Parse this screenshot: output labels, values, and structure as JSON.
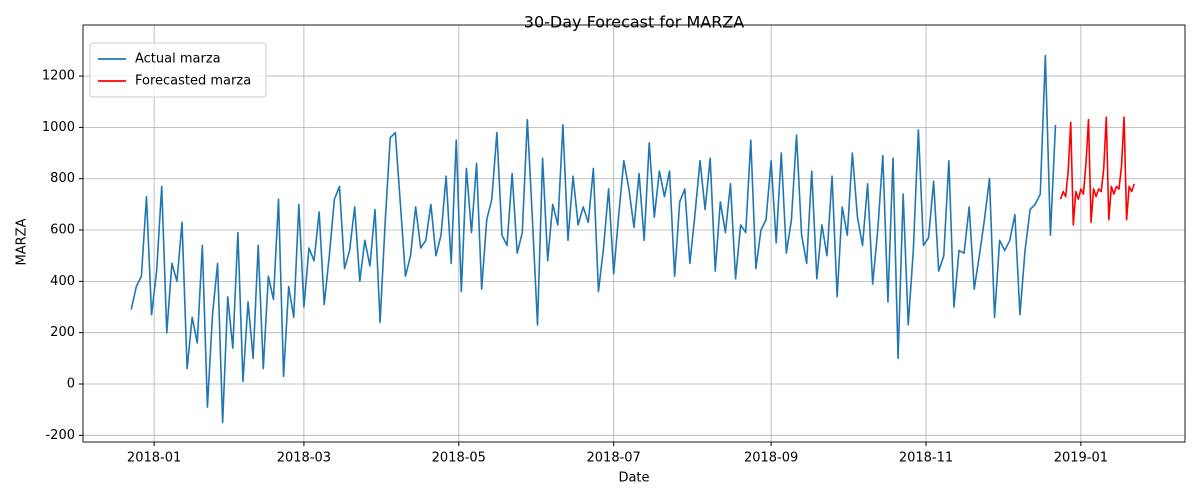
{
  "chart_data": {
    "type": "line",
    "title": "30-Day Forecast for MARZA",
    "x_label": "Date",
    "y_label": "MARZA",
    "grid": true,
    "legend": "upper left",
    "xlim": [
      "2017-12-04",
      "2019-02-11"
    ],
    "ylim": [
      -226,
      1399
    ],
    "xticks": [
      "2018-01",
      "2018-03",
      "2018-05",
      "2018-07",
      "2018-09",
      "2018-11",
      "2019-01"
    ],
    "yticks": [
      -200,
      0,
      200,
      400,
      600,
      800,
      1000,
      1200
    ],
    "series": [
      {
        "name": "Actual marza",
        "color": "#1f77b4",
        "x": [
          "2017-12-23",
          "2017-12-25",
          "2017-12-27",
          "2017-12-29",
          "2017-12-31",
          "2018-01-02",
          "2018-01-04",
          "2018-01-06",
          "2018-01-08",
          "2018-01-10",
          "2018-01-12",
          "2018-01-14",
          "2018-01-16",
          "2018-01-18",
          "2018-01-20",
          "2018-01-22",
          "2018-01-24",
          "2018-01-26",
          "2018-01-28",
          "2018-01-30",
          "2018-02-01",
          "2018-02-03",
          "2018-02-05",
          "2018-02-07",
          "2018-02-09",
          "2018-02-11",
          "2018-02-13",
          "2018-02-15",
          "2018-02-17",
          "2018-02-19",
          "2018-02-21",
          "2018-02-23",
          "2018-02-25",
          "2018-02-27",
          "2018-03-01",
          "2018-03-03",
          "2018-03-05",
          "2018-03-07",
          "2018-03-09",
          "2018-03-11",
          "2018-03-13",
          "2018-03-15",
          "2018-03-17",
          "2018-03-19",
          "2018-03-21",
          "2018-03-23",
          "2018-03-25",
          "2018-03-27",
          "2018-03-29",
          "2018-03-31",
          "2018-04-02",
          "2018-04-04",
          "2018-04-06",
          "2018-04-08",
          "2018-04-10",
          "2018-04-12",
          "2018-04-14",
          "2018-04-16",
          "2018-04-18",
          "2018-04-20",
          "2018-04-22",
          "2018-04-24",
          "2018-04-26",
          "2018-04-28",
          "2018-04-30",
          "2018-05-02",
          "2018-05-04",
          "2018-05-06",
          "2018-05-08",
          "2018-05-10",
          "2018-05-12",
          "2018-05-14",
          "2018-05-16",
          "2018-05-18",
          "2018-05-20",
          "2018-05-22",
          "2018-05-24",
          "2018-05-26",
          "2018-05-28",
          "2018-05-30",
          "2018-06-01",
          "2018-06-03",
          "2018-06-05",
          "2018-06-07",
          "2018-06-09",
          "2018-06-11",
          "2018-06-13",
          "2018-06-15",
          "2018-06-17",
          "2018-06-19",
          "2018-06-21",
          "2018-06-23",
          "2018-06-25",
          "2018-06-27",
          "2018-06-29",
          "2018-07-01",
          "2018-07-03",
          "2018-07-05",
          "2018-07-07",
          "2018-07-09",
          "2018-07-11",
          "2018-07-13",
          "2018-07-15",
          "2018-07-17",
          "2018-07-19",
          "2018-07-21",
          "2018-07-23",
          "2018-07-25",
          "2018-07-27",
          "2018-07-29",
          "2018-07-31",
          "2018-08-02",
          "2018-08-04",
          "2018-08-06",
          "2018-08-08",
          "2018-08-10",
          "2018-08-12",
          "2018-08-14",
          "2018-08-16",
          "2018-08-18",
          "2018-08-20",
          "2018-08-22",
          "2018-08-24",
          "2018-08-26",
          "2018-08-28",
          "2018-08-30",
          "2018-09-01",
          "2018-09-03",
          "2018-09-05",
          "2018-09-07",
          "2018-09-09",
          "2018-09-11",
          "2018-09-13",
          "2018-09-15",
          "2018-09-17",
          "2018-09-19",
          "2018-09-21",
          "2018-09-23",
          "2018-09-25",
          "2018-09-27",
          "2018-09-29",
          "2018-10-01",
          "2018-10-03",
          "2018-10-05",
          "2018-10-07",
          "2018-10-09",
          "2018-10-11",
          "2018-10-13",
          "2018-10-15",
          "2018-10-17",
          "2018-10-19",
          "2018-10-21",
          "2018-10-23",
          "2018-10-25",
          "2018-10-27",
          "2018-10-29",
          "2018-10-31",
          "2018-11-02",
          "2018-11-04",
          "2018-11-06",
          "2018-11-08",
          "2018-11-10",
          "2018-11-12",
          "2018-11-14",
          "2018-11-16",
          "2018-11-18",
          "2018-11-20",
          "2018-11-22",
          "2018-11-24",
          "2018-11-26",
          "2018-11-28",
          "2018-11-30",
          "2018-12-02",
          "2018-12-04",
          "2018-12-06",
          "2018-12-08",
          "2018-12-10",
          "2018-12-12",
          "2018-12-14",
          "2018-12-16",
          "2018-12-18",
          "2018-12-20",
          "2018-12-22"
        ],
        "values": [
          290,
          380,
          420,
          730,
          270,
          440,
          770,
          200,
          470,
          400,
          630,
          60,
          260,
          160,
          540,
          -90,
          270,
          470,
          -150,
          340,
          140,
          590,
          10,
          320,
          100,
          540,
          60,
          420,
          330,
          720,
          30,
          380,
          260,
          700,
          300,
          530,
          480,
          670,
          310,
          500,
          720,
          770,
          450,
          520,
          690,
          400,
          560,
          460,
          680,
          240,
          630,
          960,
          980,
          700,
          420,
          500,
          690,
          530,
          560,
          700,
          500,
          580,
          810,
          470,
          950,
          360,
          840,
          590,
          860,
          370,
          640,
          720,
          980,
          580,
          540,
          820,
          510,
          590,
          1030,
          640,
          230,
          880,
          480,
          700,
          620,
          1010,
          560,
          810,
          620,
          690,
          630,
          840,
          360,
          530,
          760,
          430,
          660,
          870,
          760,
          610,
          820,
          560,
          940,
          650,
          830,
          730,
          830,
          420,
          710,
          760,
          470,
          660,
          870,
          680,
          880,
          440,
          710,
          590,
          780,
          410,
          620,
          590,
          950,
          450,
          600,
          640,
          870,
          550,
          900,
          510,
          640,
          970,
          580,
          470,
          830,
          410,
          620,
          500,
          810,
          340,
          690,
          580,
          900,
          650,
          540,
          780,
          390,
          600,
          890,
          320,
          880,
          100,
          740,
          230,
          520,
          990,
          540,
          570,
          790,
          440,
          500,
          870,
          300,
          520,
          510,
          690,
          370,
          500,
          640,
          800,
          260,
          560,
          520,
          560,
          660,
          270,
          520,
          680,
          700,
          740,
          1280,
          580,
          1010
        ]
      },
      {
        "name": "Forecasted marza",
        "color": "#ff0000",
        "x": [
          "2018-12-24",
          "2018-12-25",
          "2018-12-26",
          "2018-12-27",
          "2018-12-28",
          "2018-12-29",
          "2018-12-30",
          "2018-12-31",
          "2019-01-01",
          "2019-01-02",
          "2019-01-03",
          "2019-01-04",
          "2019-01-05",
          "2019-01-06",
          "2019-01-07",
          "2019-01-08",
          "2019-01-09",
          "2019-01-10",
          "2019-01-11",
          "2019-01-12",
          "2019-01-13",
          "2019-01-14",
          "2019-01-15",
          "2019-01-16",
          "2019-01-17",
          "2019-01-18",
          "2019-01-19",
          "2019-01-20",
          "2019-01-21",
          "2019-01-22"
        ],
        "values": [
          720,
          750,
          730,
          830,
          1020,
          620,
          750,
          720,
          760,
          740,
          860,
          1030,
          630,
          760,
          730,
          760,
          750,
          840,
          1040,
          640,
          770,
          740,
          770,
          760,
          850,
          1040,
          640,
          770,
          750,
          780
        ]
      }
    ]
  }
}
